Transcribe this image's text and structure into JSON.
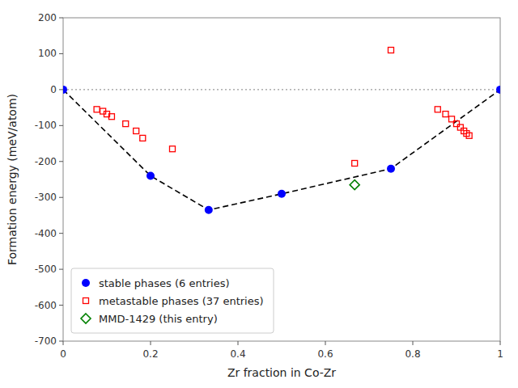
{
  "chart_data": {
    "type": "scatter",
    "xlabel": "Zr fraction in Co-Zr",
    "ylabel": "Formation energy (meV/atom)",
    "xlim": [
      0.0,
      1.0
    ],
    "ylim": [
      -700,
      200
    ],
    "xticks": [
      0,
      0.2,
      0.4,
      0.6,
      0.8,
      1
    ],
    "yticks": [
      -700,
      -600,
      -500,
      -400,
      -300,
      -200,
      -100,
      0,
      100,
      200
    ],
    "grid": false,
    "legend": "lower left",
    "hlines": [
      {
        "value": 0,
        "color": "gray",
        "line_style": "dotted"
      }
    ],
    "series": [
      {
        "name": "stable phases (6 entries)",
        "type": "scatter",
        "color": "blue",
        "marker": "circle",
        "x": [
          0.0,
          0.2,
          0.333,
          0.5,
          0.75,
          1.0
        ],
        "values": [
          0.0,
          -240,
          -335,
          -290,
          -220,
          0.0
        ]
      },
      {
        "name": "metastable phases (37 entries)",
        "type": "scatter",
        "color": "red",
        "marker": "square-open",
        "x": [
          0.077,
          0.091,
          0.1,
          0.111,
          0.143,
          0.167,
          0.182,
          0.25,
          0.667,
          0.75,
          0.857,
          0.875,
          0.889,
          0.9,
          0.909,
          0.917,
          0.923,
          0.929
        ],
        "values": [
          -55,
          -60,
          -68,
          -75,
          -95,
          -115,
          -135,
          -165,
          -205,
          110,
          -55,
          -68,
          -82,
          -95,
          -105,
          -115,
          -122,
          -128
        ]
      },
      {
        "name": "MMD-1429 (this entry)",
        "type": "scatter",
        "color": "green",
        "marker": "diamond-open",
        "x": [
          0.667
        ],
        "values": [
          -265
        ]
      },
      {
        "type": "line",
        "color": "black",
        "line_style": "dashed",
        "x": [
          0.0,
          0.2,
          0.333,
          0.5,
          0.75,
          1.0
        ],
        "values": [
          0.0,
          -240,
          -335,
          -290,
          -220,
          0.0
        ]
      }
    ]
  }
}
